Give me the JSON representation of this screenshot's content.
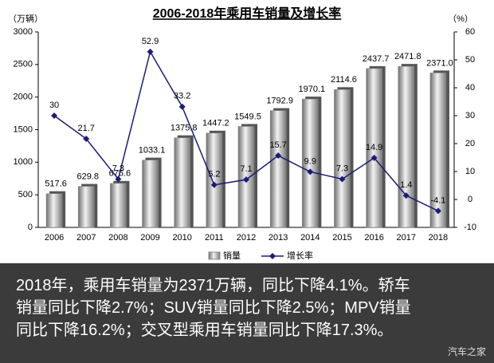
{
  "chart_data": {
    "type": "bar",
    "title": "2006-2018年乘用车销量及增长率",
    "y_unit": "（万辆）",
    "y2_unit": "（%）",
    "categories": [
      "2006",
      "2007",
      "2008",
      "2009",
      "2010",
      "2011",
      "2012",
      "2013",
      "2014",
      "2015",
      "2016",
      "2017",
      "2018"
    ],
    "series": [
      {
        "name": "销量",
        "type": "bar",
        "color": "#9a9a9a",
        "values": [
          517.6,
          629.8,
          675.6,
          1033.1,
          1375.8,
          1447.2,
          1549.5,
          1792.9,
          1970.1,
          2114.6,
          2437.7,
          2471.8,
          2371
        ],
        "value_labels": [
          "517.6",
          "629.8",
          "675.6",
          "1033.1",
          "1375.8",
          "1447.2",
          "1549.5",
          "1792.9",
          "1970.1",
          "2114.6",
          "2437.7",
          "2471.8",
          "2371.0"
        ]
      },
      {
        "name": "增长率",
        "type": "line",
        "axis": "y2",
        "color": "#1c1c78",
        "values": [
          30,
          21.7,
          7.3,
          52.9,
          33.2,
          5.2,
          7.1,
          15.7,
          9.9,
          7.3,
          14.9,
          1.4,
          -4.1
        ]
      }
    ],
    "ylim": [
      0,
      3000
    ],
    "yticks": [
      0,
      500,
      1000,
      1500,
      2000,
      2500,
      3000
    ],
    "y2lim": [
      -10,
      60
    ],
    "y2ticks": [
      -10,
      0,
      10,
      20,
      30,
      40,
      50,
      60
    ]
  },
  "caption": {
    "lines": [
      "2018年，乘用车销量为2371万辆，同比下降4.1%。轿车",
      "销量同比下降2.7%；SUV销量同比下降2.5%；MPV销量",
      "同比下降16.2%；交叉型乘用车销量同比下降17.3%。"
    ]
  },
  "watermark": "汽车之家"
}
